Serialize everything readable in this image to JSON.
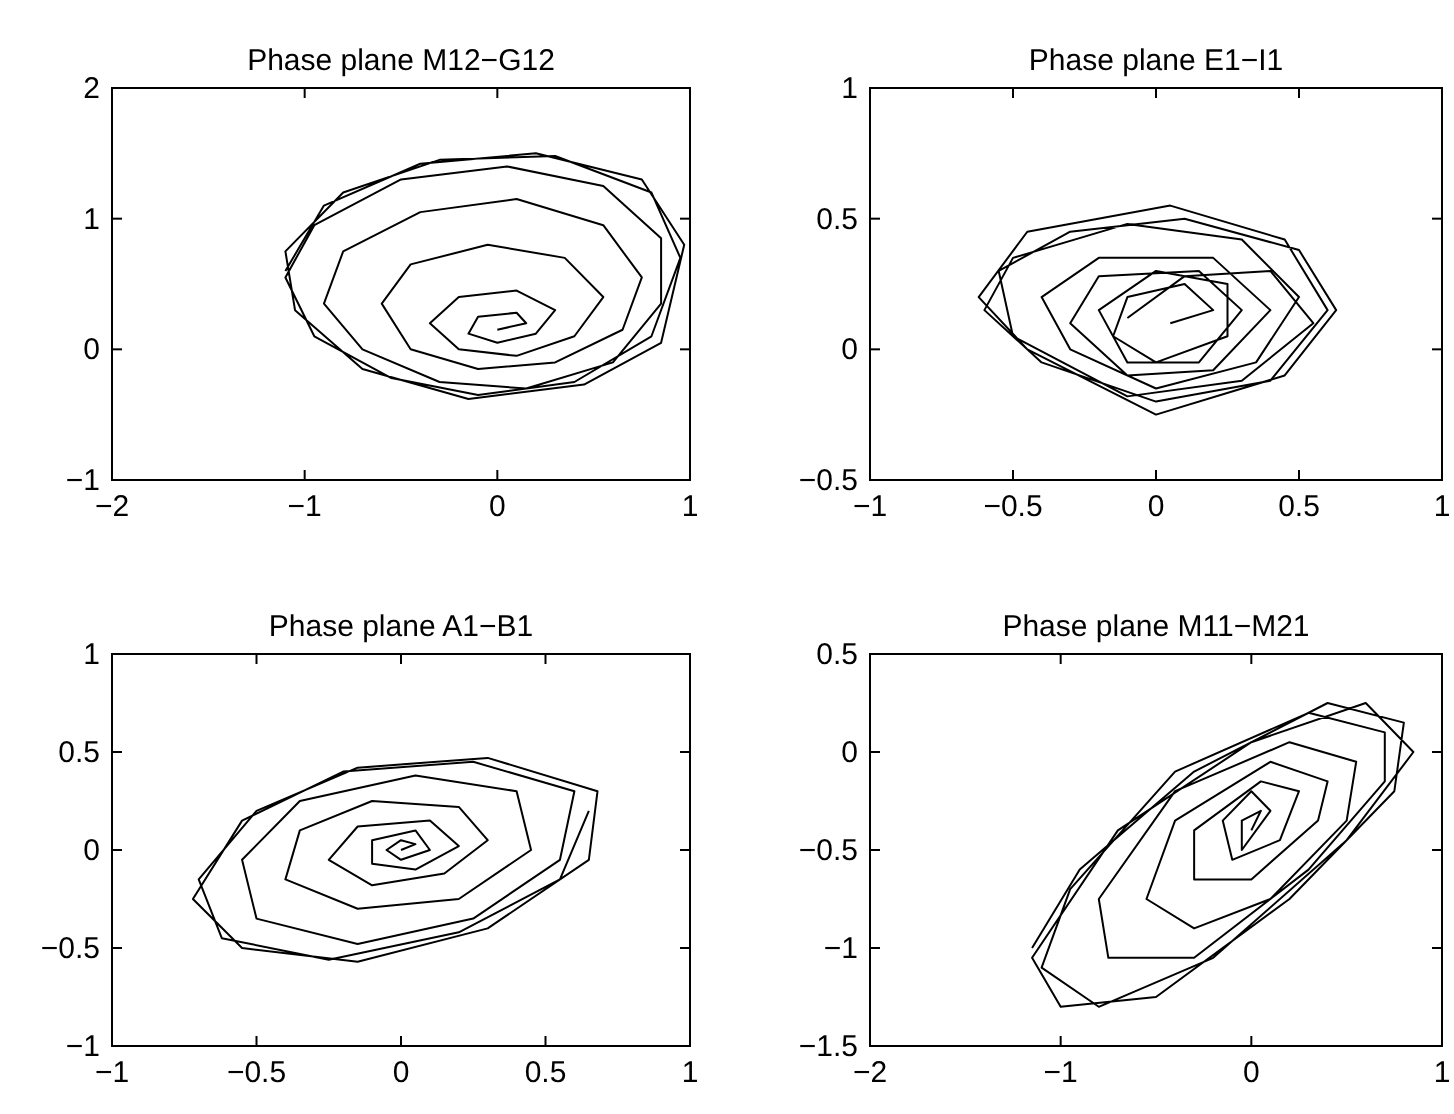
{
  "chart_data": [
    {
      "type": "line",
      "title": "Phase plane M12−G12",
      "color": "#000000",
      "xlim": [
        -2,
        1
      ],
      "ylim": [
        -1,
        2
      ],
      "xticks": [
        {
          "value": -2,
          "label": "−2"
        },
        {
          "value": -1,
          "label": "−1"
        },
        0,
        1
      ],
      "yticks": [
        {
          "value": -1,
          "label": "−1"
        },
        0,
        1,
        2
      ],
      "x": [
        0,
        0.15,
        0.1,
        -0.1,
        -0.15,
        0,
        0.2,
        0.3,
        0.1,
        -0.2,
        -0.35,
        -0.2,
        0.1,
        0.4,
        0.55,
        0.35,
        -0.05,
        -0.45,
        -0.6,
        -0.45,
        -0.1,
        0.3,
        0.65,
        0.75,
        0.55,
        0.1,
        -0.4,
        -0.8,
        -0.9,
        -0.7,
        -0.3,
        0.15,
        0.6,
        0.85,
        0.85,
        0.55,
        0.05,
        -0.5,
        -0.95,
        -1.1,
        -0.95,
        -0.55,
        -0.1,
        0.4,
        0.8,
        0.95,
        0.8,
        0.3,
        -0.3,
        -0.8,
        -1.1,
        -1.05,
        -0.7,
        -0.15,
        0.45,
        0.85,
        0.97,
        0.75,
        0.2,
        -0.4,
        -0.9,
        -1.1
      ],
      "values": [
        0.15,
        0.2,
        0.28,
        0.25,
        0.12,
        0.05,
        0.12,
        0.3,
        0.45,
        0.4,
        0.2,
        0,
        -0.05,
        0.1,
        0.4,
        0.7,
        0.8,
        0.65,
        0.35,
        0,
        -0.15,
        -0.1,
        0.15,
        0.55,
        0.95,
        1.15,
        1.05,
        0.75,
        0.35,
        0,
        -0.25,
        -0.3,
        -0.1,
        0.35,
        0.85,
        1.25,
        1.4,
        1.3,
        0.95,
        0.55,
        0.1,
        -0.22,
        -0.35,
        -0.25,
        0.1,
        0.7,
        1.2,
        1.48,
        1.45,
        1.2,
        0.75,
        0.3,
        -0.15,
        -0.38,
        -0.27,
        0.05,
        0.8,
        1.3,
        1.5,
        1.42,
        1.1,
        0.6
      ]
    },
    {
      "type": "line",
      "title": "Phase plane E1−I1",
      "color": "#000000",
      "xlim": [
        -1,
        1
      ],
      "ylim": [
        -0.5,
        1
      ],
      "xticks": [
        {
          "value": -1,
          "label": "−1"
        },
        {
          "value": -0.5,
          "label": "−0.5"
        },
        0,
        0.5,
        1
      ],
      "yticks": [
        {
          "value": -0.5,
          "label": "−0.5"
        },
        0,
        0.5,
        1
      ],
      "x": [
        0.05,
        0.2,
        0.1,
        -0.1,
        -0.15,
        0,
        0.25,
        0.25,
        0,
        -0.2,
        -0.1,
        0.15,
        0.3,
        0.15,
        -0.2,
        -0.3,
        -0.1,
        0.2,
        0.4,
        0.2,
        -0.2,
        -0.4,
        -0.3,
        0,
        0.35,
        0.5,
        0.3,
        -0.1,
        -0.5,
        -0.6,
        -0.4,
        0,
        0.4,
        0.6,
        0.45,
        0.05,
        -0.45,
        -0.62,
        -0.45,
        0,
        0.45,
        0.63,
        0.5,
        0.1,
        -0.3,
        -0.55,
        -0.5,
        -0.1,
        0.3,
        0.55,
        0.4,
        0.1,
        -0.1
      ],
      "values": [
        0.1,
        0.15,
        0.25,
        0.2,
        0.05,
        -0.05,
        0.05,
        0.25,
        0.3,
        0.15,
        -0.05,
        -0.05,
        0.15,
        0.3,
        0.28,
        0.1,
        -0.1,
        -0.08,
        0.15,
        0.35,
        0.35,
        0.2,
        0,
        -0.15,
        -0.05,
        0.2,
        0.42,
        0.48,
        0.35,
        0.15,
        -0.05,
        -0.2,
        -0.12,
        0.15,
        0.42,
        0.55,
        0.45,
        0.2,
        0,
        -0.25,
        -0.1,
        0.15,
        0.38,
        0.5,
        0.45,
        0.3,
        0.05,
        -0.18,
        -0.12,
        0.1,
        0.3,
        0.28,
        0.12
      ]
    },
    {
      "type": "line",
      "title": "Phase plane A1−B1",
      "color": "#000000",
      "xlim": [
        -1,
        1
      ],
      "ylim": [
        -1,
        1
      ],
      "xticks": [
        {
          "value": -1,
          "label": "−1"
        },
        {
          "value": -0.5,
          "label": "−0.5"
        },
        0,
        0.5,
        1
      ],
      "yticks": [
        {
          "value": -1,
          "label": "−1"
        },
        {
          "value": -0.5,
          "label": "−0.5"
        },
        0,
        0.5,
        1
      ],
      "x": [
        0,
        0.05,
        0,
        -0.05,
        0,
        0.1,
        0.05,
        -0.1,
        -0.1,
        0.05,
        0.2,
        0.1,
        -0.15,
        -0.25,
        -0.1,
        0.15,
        0.3,
        0.2,
        -0.1,
        -0.35,
        -0.4,
        -0.15,
        0.2,
        0.45,
        0.4,
        0.05,
        -0.35,
        -0.55,
        -0.5,
        -0.15,
        0.25,
        0.55,
        0.6,
        0.25,
        -0.2,
        -0.55,
        -0.72,
        -0.55,
        -0.15,
        0.3,
        0.65,
        0.68,
        0.3,
        -0.15,
        -0.5,
        -0.7,
        -0.62,
        -0.25,
        0.2,
        0.55,
        0.65
      ],
      "values": [
        0,
        0.03,
        0.05,
        0,
        -0.05,
        0,
        0.1,
        0.05,
        -0.07,
        -0.1,
        0.02,
        0.15,
        0.12,
        -0.05,
        -0.18,
        -0.12,
        0.05,
        0.22,
        0.25,
        0.1,
        -0.15,
        -0.3,
        -0.25,
        0,
        0.3,
        0.38,
        0.25,
        -0.05,
        -0.35,
        -0.48,
        -0.35,
        -0.05,
        0.3,
        0.45,
        0.4,
        0.15,
        -0.25,
        -0.5,
        -0.57,
        -0.4,
        -0.05,
        0.3,
        0.47,
        0.42,
        0.2,
        -0.15,
        -0.45,
        -0.56,
        -0.42,
        -0.15,
        0.2
      ]
    },
    {
      "type": "line",
      "title": "Phase plane M11−M21",
      "color": "#000000",
      "xlim": [
        -2,
        1
      ],
      "ylim": [
        -1.5,
        0.5
      ],
      "xticks": [
        {
          "value": -2,
          "label": "−2"
        },
        {
          "value": -1,
          "label": "−1"
        },
        0,
        1
      ],
      "yticks": [
        {
          "value": -1.5,
          "label": "−1.5"
        },
        {
          "value": -1,
          "label": "−1"
        },
        {
          "value": -0.5,
          "label": "−0.5"
        },
        0,
        0.5
      ],
      "x": [
        0,
        0.05,
        -0.05,
        -0.05,
        0.1,
        0,
        -0.15,
        -0.1,
        0.15,
        0.25,
        0.05,
        -0.3,
        -0.3,
        0,
        0.35,
        0.4,
        0.1,
        -0.4,
        -0.55,
        -0.3,
        0.1,
        0.5,
        0.55,
        0.2,
        -0.4,
        -0.8,
        -0.75,
        -0.3,
        0.3,
        0.7,
        0.7,
        0.3,
        -0.4,
        -0.95,
        -1.1,
        -0.8,
        -0.2,
        0.5,
        0.85,
        0.6,
        0,
        -0.7,
        -1.15,
        -1.0,
        -0.5,
        0.2,
        0.75,
        0.8,
        0.4,
        -0.3,
        -0.9,
        -1.15
      ],
      "values": [
        -0.4,
        -0.3,
        -0.35,
        -0.5,
        -0.3,
        -0.2,
        -0.35,
        -0.55,
        -0.45,
        -0.2,
        -0.15,
        -0.4,
        -0.65,
        -0.65,
        -0.35,
        -0.15,
        -0.05,
        -0.35,
        -0.75,
        -0.9,
        -0.75,
        -0.35,
        -0.05,
        0.05,
        -0.2,
        -0.75,
        -1.05,
        -1.05,
        -0.6,
        -0.15,
        0.1,
        0.2,
        -0.1,
        -0.7,
        -1.1,
        -1.3,
        -1.05,
        -0.45,
        0,
        0.25,
        0.05,
        -0.4,
        -1.05,
        -1.3,
        -1.25,
        -0.75,
        -0.2,
        0.15,
        0.25,
        -0.1,
        -0.6,
        -1.0
      ]
    }
  ]
}
